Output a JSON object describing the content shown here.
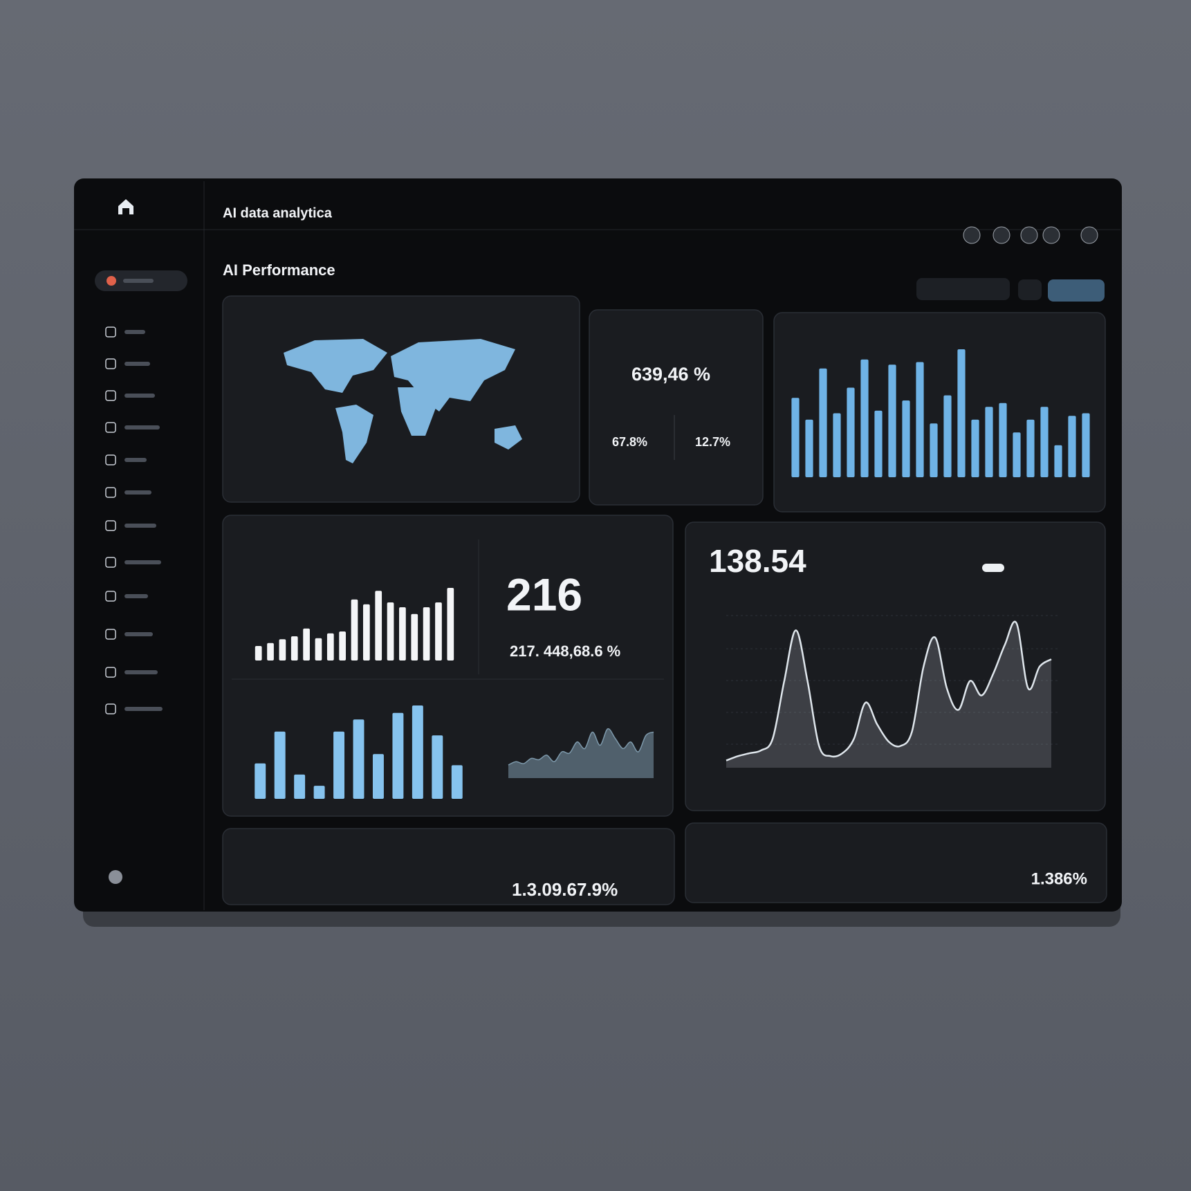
{
  "header": {
    "title": "AI data analytica"
  },
  "page_title": "AI Performance",
  "kpi_card": {
    "value": "639,46 %",
    "stats": [
      "67.8%",
      "12.7%"
    ]
  },
  "activity_card": {
    "value": "216",
    "sub_value": "217. 448,68.6 %"
  },
  "trend_card": {
    "value": "138.54"
  },
  "bottom_left_value": "1.3.09.67.9%",
  "bottom_right_value": "1.386%",
  "chart_data": [
    {
      "type": "bar",
      "color": "#6fb3e6",
      "ylim": [
        0,
        100
      ],
      "values": [
        62,
        45,
        85,
        50,
        70,
        92,
        52,
        88,
        60,
        90,
        42,
        64,
        100,
        45,
        55,
        58,
        35,
        45,
        55,
        25,
        48,
        50
      ]
    },
    {
      "type": "bar",
      "color": "#f4f5f7",
      "ylim": [
        0,
        100
      ],
      "values": [
        15,
        18,
        22,
        25,
        33,
        23,
        28,
        30,
        63,
        58,
        72,
        60,
        55,
        48,
        55,
        60,
        75
      ]
    },
    {
      "type": "bar",
      "color": "#86c3ee",
      "ylim": [
        0,
        100
      ],
      "values": [
        38,
        72,
        26,
        14,
        72,
        85,
        48,
        92,
        100,
        68,
        36
      ]
    },
    {
      "type": "area",
      "color": "#7d99ab",
      "ylim": [
        0,
        100
      ],
      "values": [
        20,
        25,
        22,
        30,
        28,
        35,
        25,
        40,
        38,
        55,
        45,
        70,
        50,
        75,
        60,
        45,
        55,
        40,
        65,
        70
      ]
    },
    {
      "type": "line",
      "color": "#dfe6ec",
      "ylim": [
        0,
        110
      ],
      "values": [
        5,
        8,
        10,
        12,
        20,
        60,
        95,
        60,
        15,
        8,
        10,
        20,
        45,
        30,
        18,
        15,
        25,
        70,
        90,
        55,
        40,
        60,
        50,
        65,
        85,
        100,
        55,
        70,
        75
      ]
    }
  ]
}
